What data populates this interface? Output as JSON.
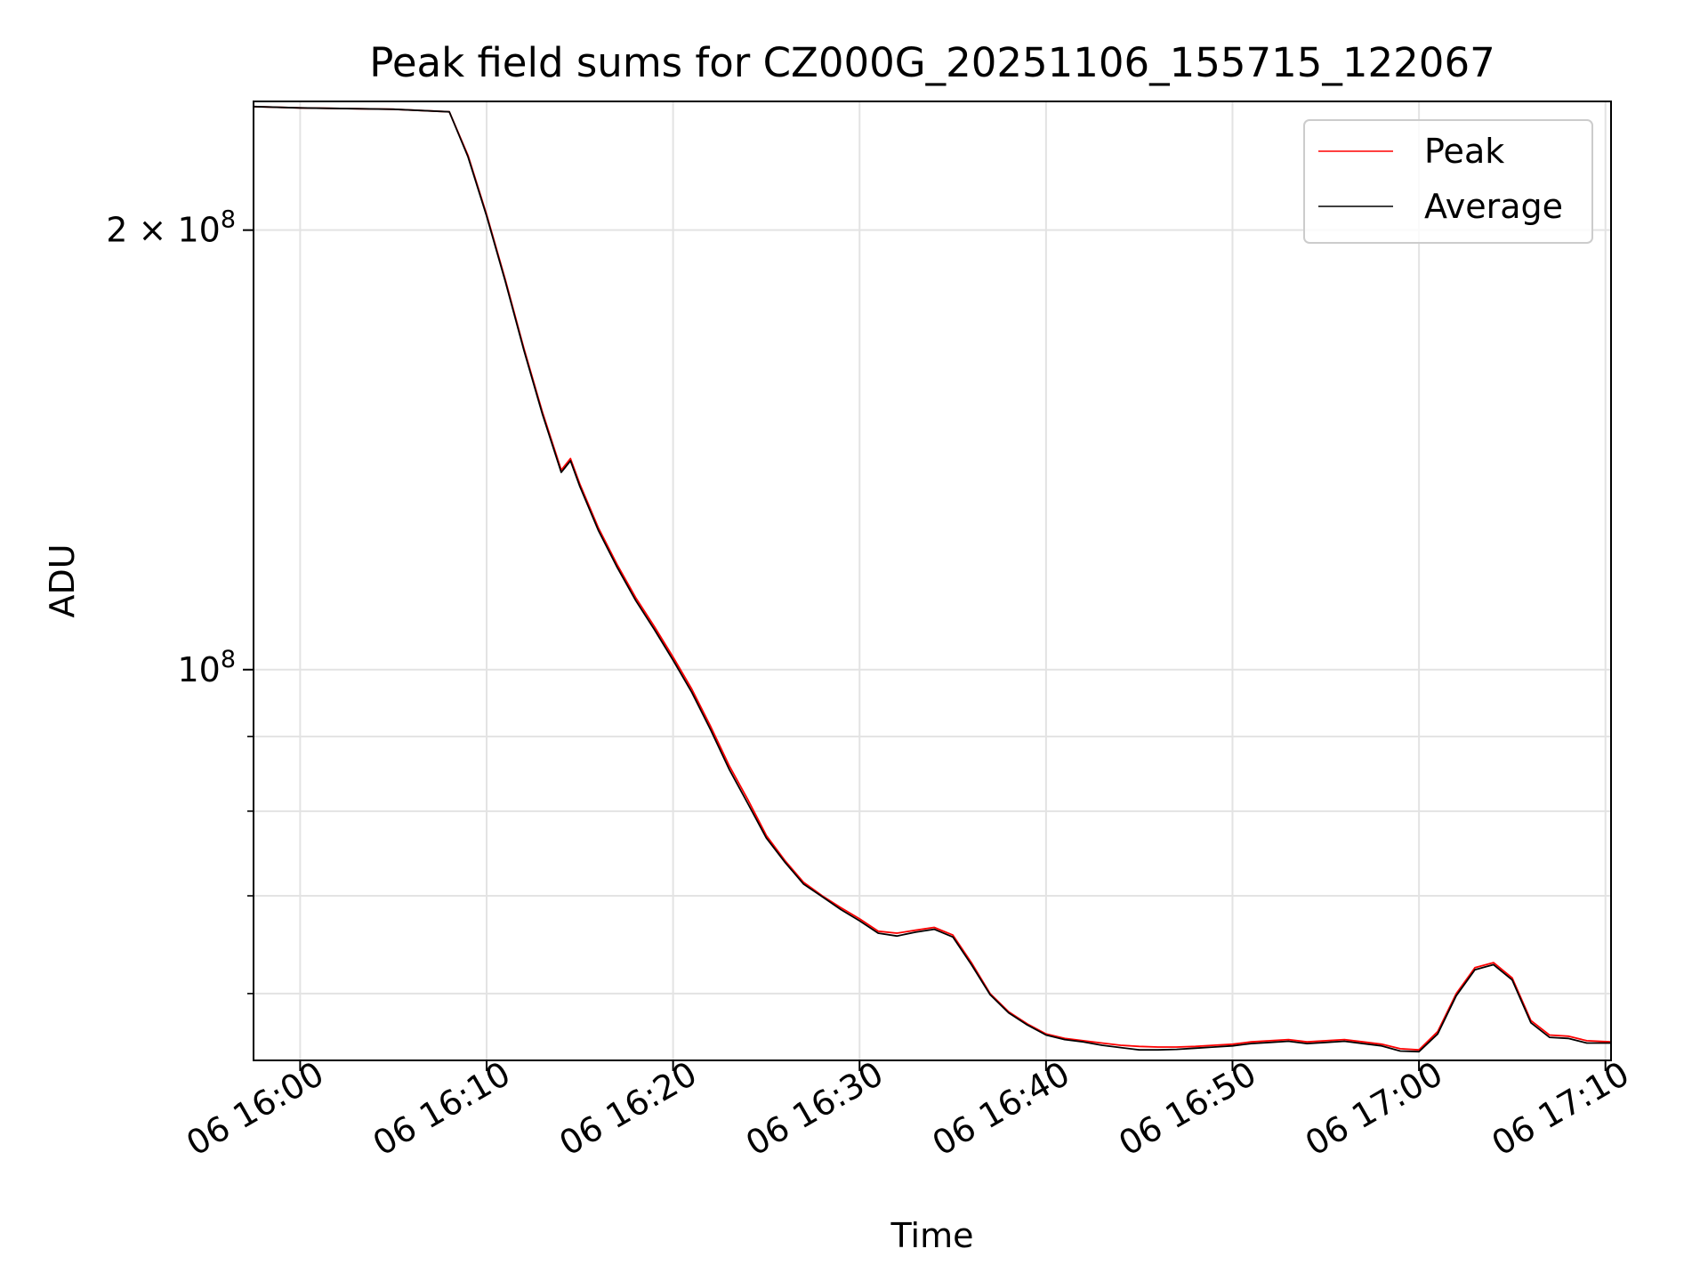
{
  "chart_data": {
    "type": "line",
    "title": "Peak field sums for CZ000G_20251106_155715_122067",
    "xlabel": "Time",
    "ylabel": "ADU",
    "yscale": "log",
    "ylim": [
      54000000,
      245000000
    ],
    "xlim_minutes": [
      -2.5,
      70.3
    ],
    "x_ticks": [
      {
        "minutes": 0,
        "label": "06 16:00"
      },
      {
        "minutes": 10,
        "label": "06 16:10"
      },
      {
        "minutes": 20,
        "label": "06 16:20"
      },
      {
        "minutes": 30,
        "label": "06 16:30"
      },
      {
        "minutes": 40,
        "label": "06 16:40"
      },
      {
        "minutes": 50,
        "label": "06 16:50"
      },
      {
        "minutes": 60,
        "label": "06 17:00"
      },
      {
        "minutes": 70,
        "label": "06 17:10"
      }
    ],
    "y_major_ticks": [
      {
        "value": 200000000,
        "mant": "2 × 10",
        "exp": "8"
      },
      {
        "value": 100000000,
        "mant": "10",
        "exp": "8"
      }
    ],
    "y_minor_ticks": [
      60000000,
      70000000,
      80000000,
      90000000
    ],
    "grid": true,
    "legend_position": "top-right",
    "x_minutes": [
      -2.5,
      0,
      5,
      8,
      9,
      10,
      11,
      12,
      13,
      14,
      14.5,
      15,
      16,
      17,
      18,
      19,
      20,
      21,
      22,
      23,
      24,
      25,
      26,
      27,
      28,
      29,
      30,
      31,
      32,
      33,
      34,
      35,
      36,
      37,
      38,
      39,
      40,
      41,
      42,
      43,
      44,
      45,
      46,
      47,
      48,
      49,
      50,
      51,
      52,
      53,
      54,
      55,
      56,
      57,
      58,
      59,
      60,
      61,
      62,
      63,
      64,
      65,
      66,
      67,
      68,
      69,
      70.3
    ],
    "series": [
      {
        "name": "Peak",
        "color": "#ff0000",
        "values": [
          243000000,
          242500000,
          242000000,
          241000000,
          225000000,
          205000000,
          185000000,
          166000000,
          150000000,
          137000000,
          139500000,
          134000000,
          125000000,
          118000000,
          112000000,
          107000000,
          102000000,
          97000000,
          91500000,
          86000000,
          81500000,
          77000000,
          74000000,
          71500000,
          70000000,
          68700000,
          67500000,
          66200000,
          66000000,
          66300000,
          66600000,
          65800000,
          63000000,
          60000000,
          58300000,
          57200000,
          56300000,
          55900000,
          55700000,
          55500000,
          55300000,
          55200000,
          55150000,
          55150000,
          55200000,
          55300000,
          55400000,
          55600000,
          55700000,
          55800000,
          55600000,
          55700000,
          55800000,
          55600000,
          55400000,
          55000000,
          54900000,
          56500000,
          60000000,
          62500000,
          63000000,
          61500000,
          57500000,
          56200000,
          56100000,
          55700000,
          55600000
        ]
      },
      {
        "name": "Average",
        "color": "#000000",
        "values": [
          243000000,
          242500000,
          242000000,
          241000000,
          224500000,
          204500000,
          184500000,
          165500000,
          149500000,
          136500000,
          139000000,
          133500000,
          124500000,
          117500000,
          111500000,
          106500000,
          101500000,
          96500000,
          91000000,
          85500000,
          81000000,
          76700000,
          73800000,
          71300000,
          69900000,
          68500000,
          67300000,
          66000000,
          65700000,
          66100000,
          66400000,
          65600000,
          62800000,
          59900000,
          58200000,
          57100000,
          56200000,
          55800000,
          55600000,
          55300000,
          55100000,
          54900000,
          54900000,
          54950000,
          55050000,
          55150000,
          55250000,
          55450000,
          55550000,
          55650000,
          55450000,
          55550000,
          55650000,
          55450000,
          55250000,
          54800000,
          54750000,
          56300000,
          59800000,
          62300000,
          62800000,
          61300000,
          57300000,
          56000000,
          55900000,
          55500000,
          55500000
        ]
      }
    ]
  }
}
